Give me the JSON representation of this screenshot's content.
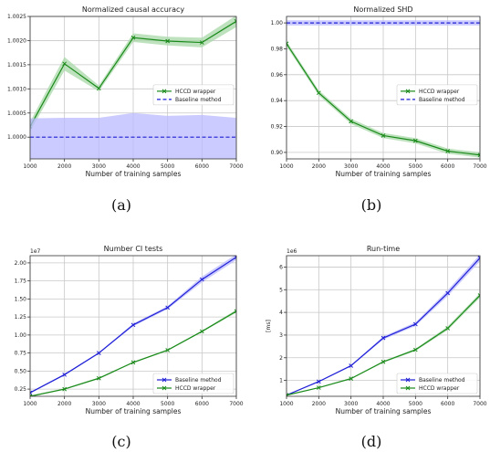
{
  "colors": {
    "hccd": "#1a8a1a",
    "hccd_band": "#a8d8a8",
    "baseline": "#1f1fd6",
    "baseline_band": "#b9b9ff",
    "grid": "#c8c8c8"
  },
  "chart_data": [
    {
      "type": "line",
      "caption": "(a)",
      "title": "Normalized causal accuracy",
      "xlabel": "Number of training samples",
      "ylabel": "",
      "sci_label": "",
      "xlim": [
        1000,
        7000
      ],
      "ylim": [
        0.99955,
        1.0025
      ],
      "x_ticks": [
        1000,
        2000,
        3000,
        4000,
        5000,
        6000,
        7000
      ],
      "y_ticks": [
        1.0,
        1.0005,
        1.001,
        1.0015,
        1.002,
        1.0025
      ],
      "y_tick_labels": [
        "1.0000",
        "1.0005",
        "1.0010",
        "1.0015",
        "1.0020",
        "1.0025"
      ],
      "grid": true,
      "legend_position": "right-middle",
      "legend": [
        "HCCD wrapper",
        "Baseline method"
      ],
      "series": [
        {
          "name": "HCCD wrapper",
          "style": "solid-x",
          "color_key": "hccd",
          "x": [
            1000,
            2000,
            3000,
            4000,
            5000,
            6000,
            7000
          ],
          "values": [
            1.00022,
            1.00152,
            1.00101,
            1.00206,
            1.00199,
            1.00196,
            1.0024
          ],
          "band_lower": [
            1.00012,
            1.00138,
            1.00095,
            1.00197,
            1.0019,
            1.00186,
            1.00228
          ],
          "band_upper": [
            1.00032,
            1.00166,
            1.00107,
            1.00215,
            1.00208,
            1.00206,
            1.00252
          ]
        },
        {
          "name": "Baseline method",
          "style": "dashed",
          "color_key": "baseline",
          "x": [
            1000,
            2000,
            3000,
            4000,
            5000,
            6000,
            7000
          ],
          "values": [
            1.0,
            1.0,
            1.0,
            1.0,
            1.0,
            1.0,
            1.0
          ],
          "band_lower": [
            0.99955,
            0.99955,
            0.99955,
            0.99955,
            0.99955,
            0.99955,
            0.99955
          ],
          "band_upper": [
            1.00039,
            1.0004,
            1.0004,
            1.0005,
            1.00044,
            1.00046,
            1.0004
          ]
        }
      ]
    },
    {
      "type": "line",
      "caption": "(b)",
      "title": "Normalized SHD",
      "xlabel": "Number of training samples",
      "ylabel": "",
      "sci_label": "",
      "xlim": [
        1000,
        7000
      ],
      "ylim": [
        0.895,
        1.005
      ],
      "x_ticks": [
        1000,
        2000,
        3000,
        4000,
        5000,
        6000,
        7000
      ],
      "y_ticks": [
        0.9,
        0.92,
        0.94,
        0.96,
        0.98,
        1.0
      ],
      "y_tick_labels": [
        "0.90",
        "0.92",
        "0.94",
        "0.96",
        "0.98",
        "1.00"
      ],
      "grid": true,
      "legend_position": "right-middle",
      "legend": [
        "HCCD wrapper",
        "Baseline method"
      ],
      "series": [
        {
          "name": "HCCD wrapper",
          "style": "solid-x",
          "color_key": "hccd",
          "x": [
            1000,
            2000,
            3000,
            4000,
            5000,
            6000,
            7000
          ],
          "values": [
            0.984,
            0.946,
            0.924,
            0.913,
            0.909,
            0.901,
            0.898
          ],
          "band_lower": [
            0.982,
            0.944,
            0.922,
            0.911,
            0.907,
            0.899,
            0.896
          ],
          "band_upper": [
            0.986,
            0.948,
            0.926,
            0.915,
            0.911,
            0.903,
            0.9
          ]
        },
        {
          "name": "Baseline method",
          "style": "dashed",
          "color_key": "baseline",
          "x": [
            1000,
            2000,
            3000,
            4000,
            5000,
            6000,
            7000
          ],
          "values": [
            1.0,
            1.0,
            1.0,
            1.0,
            1.0,
            1.0,
            1.0
          ],
          "band_lower": [
            0.998,
            0.998,
            0.998,
            0.998,
            0.998,
            0.998,
            0.998
          ],
          "band_upper": [
            1.002,
            1.002,
            1.002,
            1.002,
            1.002,
            1.002,
            1.002
          ]
        }
      ]
    },
    {
      "type": "line",
      "caption": "(c)",
      "title": "Number CI tests",
      "xlabel": "Number of training samples",
      "ylabel": "",
      "sci_label": "1e7",
      "xlim": [
        1000,
        7000
      ],
      "ylim": [
        0.15,
        2.1
      ],
      "x_ticks": [
        1000,
        2000,
        3000,
        4000,
        5000,
        6000,
        7000
      ],
      "y_ticks": [
        0.25,
        0.5,
        0.75,
        1.0,
        1.25,
        1.5,
        1.75,
        2.0
      ],
      "y_tick_labels": [
        "0.25",
        "0.50",
        "0.75",
        "1.00",
        "1.25",
        "1.50",
        "1.75",
        "2.00"
      ],
      "grid": true,
      "legend_position": "lower-right",
      "legend": [
        "Baseline method",
        "HCCD wrapper"
      ],
      "series": [
        {
          "name": "Baseline method",
          "style": "solid-x",
          "color_key": "baseline",
          "x": [
            1000,
            2000,
            3000,
            4000,
            5000,
            6000,
            7000
          ],
          "values": [
            0.2,
            0.45,
            0.75,
            1.14,
            1.38,
            1.77,
            2.08
          ],
          "band_lower": [
            0.19,
            0.44,
            0.74,
            1.12,
            1.36,
            1.73,
            2.04
          ],
          "band_upper": [
            0.21,
            0.46,
            0.76,
            1.16,
            1.4,
            1.81,
            2.12
          ]
        },
        {
          "name": "HCCD wrapper",
          "style": "solid-x",
          "color_key": "hccd",
          "x": [
            1000,
            2000,
            3000,
            4000,
            5000,
            6000,
            7000
          ],
          "values": [
            0.15,
            0.25,
            0.4,
            0.62,
            0.79,
            1.05,
            1.33
          ],
          "band_lower": [
            0.14,
            0.24,
            0.39,
            0.61,
            0.78,
            1.04,
            1.31
          ],
          "band_upper": [
            0.16,
            0.26,
            0.41,
            0.63,
            0.8,
            1.06,
            1.35
          ]
        }
      ]
    },
    {
      "type": "line",
      "caption": "(d)",
      "title": "Run-time",
      "xlabel": "Number of training samples",
      "ylabel": "[ms]",
      "sci_label": "1e6",
      "xlim": [
        1000,
        7000
      ],
      "ylim": [
        0.3,
        6.5
      ],
      "x_ticks": [
        1000,
        2000,
        3000,
        4000,
        5000,
        6000,
        7000
      ],
      "y_ticks": [
        1,
        2,
        3,
        4,
        5,
        6
      ],
      "y_tick_labels": [
        "1",
        "2",
        "3",
        "4",
        "5",
        "6"
      ],
      "grid": true,
      "legend_position": "lower-right",
      "legend": [
        "Baseline method",
        "HCCD wrapper"
      ],
      "series": [
        {
          "name": "Baseline method",
          "style": "solid-x",
          "color_key": "baseline",
          "x": [
            1000,
            2000,
            3000,
            4000,
            5000,
            6000,
            7000
          ],
          "values": [
            0.35,
            0.95,
            1.65,
            2.87,
            3.48,
            4.85,
            6.4
          ],
          "band_lower": [
            0.33,
            0.92,
            1.62,
            2.8,
            3.4,
            4.72,
            6.25
          ],
          "band_upper": [
            0.37,
            0.98,
            1.68,
            2.94,
            3.56,
            4.98,
            6.55
          ]
        },
        {
          "name": "HCCD wrapper",
          "style": "solid-x",
          "color_key": "hccd",
          "x": [
            1000,
            2000,
            3000,
            4000,
            5000,
            6000,
            7000
          ],
          "values": [
            0.35,
            0.68,
            1.08,
            1.82,
            2.35,
            3.3,
            4.75
          ],
          "band_lower": [
            0.33,
            0.66,
            1.05,
            1.78,
            2.3,
            3.22,
            4.65
          ],
          "band_upper": [
            0.37,
            0.7,
            1.11,
            1.86,
            2.4,
            3.38,
            4.85
          ]
        }
      ]
    }
  ]
}
